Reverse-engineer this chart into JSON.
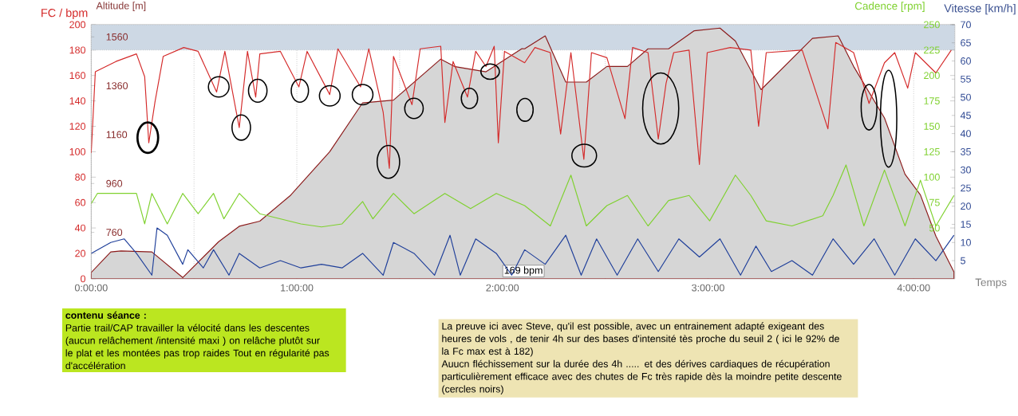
{
  "chart_data": [
    {
      "type": "line",
      "xlabel": "Temps",
      "ylabel": "FC / bpm",
      "y2label": "Altitude [m]",
      "xlim": [
        0,
        4.2
      ],
      "xticks": [
        {
          "value": 0,
          "label": "0:00:00"
        },
        {
          "value": 0.5,
          "label": null
        },
        {
          "value": 1,
          "label": "1:00:00"
        },
        {
          "value": 1.5,
          "label": null
        },
        {
          "value": 2,
          "label": "2:00:00"
        },
        {
          "value": 2.5,
          "label": null
        },
        {
          "value": 3,
          "label": "3:00:00"
        },
        {
          "value": 3.5,
          "label": null
        },
        {
          "value": 4,
          "label": "4:00:00"
        }
      ],
      "ylim": [
        0,
        200
      ],
      "yticks": [
        0,
        20,
        40,
        60,
        80,
        100,
        120,
        140,
        160,
        180,
        200
      ],
      "y2lim": [
        570,
        1610
      ],
      "y2ticks": [
        760,
        960,
        1160,
        1360,
        1560
      ],
      "grid": "x",
      "marker": "none",
      "bands": [
        {
          "axis": "y",
          "from": 180,
          "to": 200,
          "color": "#cdd8e4"
        }
      ],
      "annotations": [
        {
          "text": "169 bpm",
          "x": 2.0
        },
        "contenu séance :",
        "Partie trail/CAP travailler la vélocité dans les descentes (aucun relâchement /intensité maxi ) on relâche plutôt sur le plat et les montées pas trop raides  Tout en régularité pas d'accélération",
        "La preuve ici avec Steve,  qu'il est possible, avec un entrainement adapté exigeant des heures de vols  , de tenir 4h sur des bases d'intensité  tès proche du seuil 2 ( ici le 92% de la Fc max est à 182)",
        "Auucn fléchissement sur la durée des 4h ..... et des dérives cardiaques de récupération particulièrement efficace avec des chutes de Fc très rapide dès la moindre petite descente  (cercles noirs)"
      ],
      "series": [
        {
          "type": "area",
          "axis": "y2",
          "color": "#d6d6d6",
          "x": [
            0,
            0.095,
            0.145,
            0.295,
            0.445,
            0.62,
            0.72,
            0.82,
            0.97,
            1.16,
            1.32,
            1.47,
            1.7,
            1.77,
            1.92,
            2.095,
            2.108,
            2.208,
            2.308,
            2.408,
            2.508,
            2.608,
            2.708,
            2.808,
            2.933,
            3.058,
            3.133,
            3.258,
            3.508,
            3.633,
            3.708,
            3.858,
            3.958,
            4.033,
            4.108,
            4.196
          ],
          "values": [
            596,
            680,
            684,
            680,
            575,
            722,
            785,
            806,
            912,
            1090,
            1290,
            1301,
            1469,
            1438,
            1417,
            1512,
            1511,
            1564,
            1375,
            1375,
            1439,
            1439,
            1511,
            1511,
            1585,
            1596,
            1543,
            1344,
            1554,
            1564,
            1439,
            1228,
            998,
            913,
            745,
            598
          ]
        },
        {
          "color": "#d42a2a",
          "x": [
            0,
            0.02,
            0.12,
            0.22,
            0.26,
            0.28,
            0.31,
            0.35,
            0.45,
            0.52,
            0.61,
            0.65,
            0.72,
            0.76,
            0.8,
            0.82,
            0.92,
            1.01,
            1.05,
            1.16,
            1.2,
            1.31,
            1.35,
            1.42,
            1.45,
            1.47,
            1.56,
            1.6,
            1.7,
            1.72,
            1.76,
            1.83,
            1.87,
            1.92,
            1.96,
            1.98,
            2.01,
            2.108,
            2.158,
            2.233,
            2.283,
            2.333,
            2.396,
            2.433,
            2.508,
            2.596,
            2.633,
            2.708,
            2.758,
            2.796,
            2.833,
            2.908,
            2.958,
            2.996,
            3.108,
            3.208,
            3.246,
            3.283,
            3.458,
            3.583,
            3.621,
            3.708,
            3.783,
            3.858,
            3.908,
            3.971,
            4.008,
            4.108,
            4.183
          ],
          "values": [
            99,
            163,
            171,
            177,
            159,
            107,
            139,
            175,
            182,
            179,
            147,
            179,
            119,
            179,
            143,
            177,
            179,
            151,
            179,
            145,
            181,
            151,
            181,
            131,
            87,
            175,
            137,
            181,
            183,
            123,
            171,
            143,
            179,
            167,
            183,
            107,
            179,
            170,
            182,
            178,
            114,
            178,
            94,
            178,
            174,
            126,
            182,
            178,
            110,
            154,
            178,
            180,
            90,
            178,
            182,
            180,
            120,
            178,
            180,
            118,
            186,
            178,
            138,
            170,
            178,
            150,
            178,
            162,
            180
          ]
        }
      ]
    },
    {
      "type": "line",
      "ylabel": "Cadence [rpm]",
      "y2label": "Vitesse [km/h]",
      "xlim": [
        0,
        4.2
      ],
      "tick_labels": "y",
      "ylim": [
        0,
        250
      ],
      "yticks": [
        50,
        75,
        100,
        125,
        150,
        175,
        200,
        225,
        250
      ],
      "y2lim": [
        0,
        70
      ],
      "y2ticks": [
        5,
        10,
        15,
        20,
        25,
        30,
        35,
        40,
        45,
        50,
        55,
        60,
        65,
        70
      ],
      "marker": "none",
      "series": [
        {
          "color": "#7fd12f",
          "x": [
            0,
            0.03,
            0.095,
            0.22,
            0.26,
            0.295,
            0.37,
            0.445,
            0.52,
            0.595,
            0.645,
            0.72,
            0.82,
            0.92,
            1.02,
            1.12,
            1.22,
            1.32,
            1.37,
            1.47,
            1.57,
            1.72,
            1.845,
            1.97,
            2.108,
            2.233,
            2.333,
            2.408,
            2.508,
            2.608,
            2.708,
            2.808,
            2.908,
            3.008,
            3.133,
            3.208,
            3.283,
            3.408,
            3.558,
            3.608,
            3.671,
            3.758,
            3.858,
            3.958,
            4.033,
            4.108,
            4.196
          ],
          "values": [
            74,
            84,
            84,
            84,
            54,
            84,
            54,
            84,
            64,
            84,
            59,
            84,
            64,
            59,
            54,
            51,
            54,
            76,
            59,
            84,
            64,
            84,
            69,
            84,
            72,
            52,
            102,
            52,
            72,
            82,
            52,
            77,
            82,
            57,
            102,
            82,
            57,
            52,
            62,
            82,
            112,
            52,
            107,
            52,
            97,
            52,
            82
          ]
        },
        {
          "axis": "y2",
          "color": "#1f3f9a",
          "x": [
            0,
            0.095,
            0.16,
            0.22,
            0.295,
            0.32,
            0.37,
            0.445,
            0.47,
            0.545,
            0.595,
            0.67,
            0.72,
            0.82,
            0.92,
            1.02,
            1.12,
            1.22,
            1.32,
            1.42,
            1.47,
            1.57,
            1.67,
            1.745,
            1.795,
            1.87,
            1.97,
            2.045,
            2.108,
            2.208,
            2.308,
            2.383,
            2.458,
            2.558,
            2.658,
            2.758,
            2.858,
            2.958,
            3.058,
            3.158,
            3.233,
            3.308,
            3.408,
            3.508,
            3.608,
            3.708,
            3.808,
            3.908,
            4.008,
            4.108,
            4.196
          ],
          "values": [
            7,
            10,
            11,
            7,
            1,
            14,
            12,
            4,
            8,
            3,
            8,
            1,
            7,
            3,
            5,
            3,
            4,
            3,
            7,
            1,
            10,
            7,
            1,
            12,
            1,
            11,
            7,
            1,
            8,
            4,
            12,
            1,
            11,
            1,
            11,
            2,
            11,
            6,
            11,
            1,
            9,
            2,
            5,
            1,
            11,
            4,
            11,
            1,
            11,
            5,
            12
          ]
        }
      ]
    }
  ]
}
